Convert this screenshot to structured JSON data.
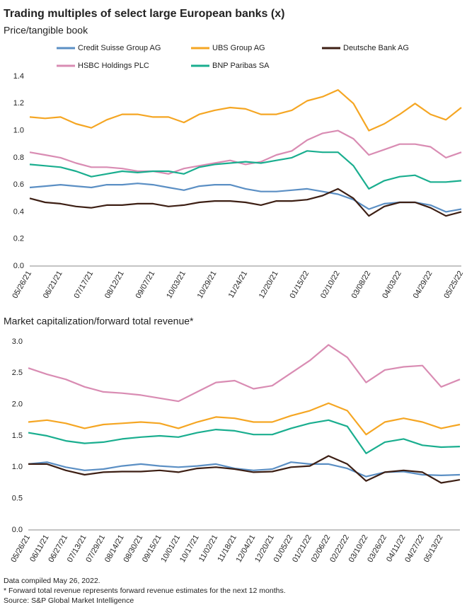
{
  "title": "Trading multiples of select large European banks (x)",
  "footnotes": [
    "Data compiled May 26, 2022.",
    "* Forward total revenue represents forward revenue estimates for the next 12 months.",
    "Source: S&P Global Market Intelligence"
  ],
  "chart_data": [
    {
      "type": "line",
      "title": "Price/tangible book",
      "categories": [
        "05/26/21",
        null,
        "06/21/21",
        null,
        "07/17/21",
        null,
        "08/12/21",
        null,
        "09/07/21",
        null,
        "10/03/21",
        null,
        "10/29/21",
        null,
        "11/24/21",
        null,
        "12/20/21",
        null,
        "01/15/22",
        null,
        "02/10/22",
        null,
        "03/08/22",
        null,
        "04/03/22",
        null,
        "04/29/22",
        null,
        "05/25/22"
      ],
      "ylim": [
        0,
        1.4
      ],
      "yticks": [
        {
          "value": 0,
          "label": "0.0"
        },
        0.2,
        0.4,
        0.6,
        0.8,
        {
          "value": 1,
          "label": "1.0"
        },
        1.2,
        1.4
      ],
      "series": [
        {
          "name": "Credit Suisse Group AG",
          "color": "#5b8fc4",
          "values": [
            0.58,
            0.59,
            0.6,
            0.59,
            0.58,
            0.6,
            0.6,
            0.61,
            0.6,
            0.58,
            0.56,
            0.59,
            0.6,
            0.6,
            0.57,
            0.55,
            0.55,
            0.56,
            0.57,
            0.55,
            0.53,
            0.49,
            0.42,
            0.46,
            0.47,
            0.47,
            0.45,
            0.4,
            0.42
          ]
        },
        {
          "name": "UBS Group AG",
          "color": "#f5a623",
          "values": [
            1.1,
            1.09,
            1.1,
            1.05,
            1.02,
            1.08,
            1.12,
            1.12,
            1.1,
            1.1,
            1.06,
            1.12,
            1.15,
            1.17,
            1.16,
            1.12,
            1.12,
            1.15,
            1.22,
            1.25,
            1.3,
            1.2,
            1.0,
            1.05,
            1.12,
            1.2,
            1.12,
            1.08,
            1.17
          ]
        },
        {
          "name": "Deutsche Bank AG",
          "color": "#3d1f14",
          "values": [
            0.5,
            0.47,
            0.46,
            0.44,
            0.43,
            0.45,
            0.45,
            0.46,
            0.46,
            0.44,
            0.45,
            0.47,
            0.48,
            0.48,
            0.47,
            0.45,
            0.48,
            0.48,
            0.49,
            0.52,
            0.57,
            0.5,
            0.37,
            0.44,
            0.47,
            0.47,
            0.43,
            0.37,
            0.4
          ]
        },
        {
          "name": "HSBC Holdings PLC",
          "color": "#d98cb3",
          "values": [
            0.84,
            0.82,
            0.8,
            0.76,
            0.73,
            0.73,
            0.72,
            0.7,
            0.7,
            0.68,
            0.72,
            0.74,
            0.76,
            0.78,
            0.75,
            0.77,
            0.82,
            0.85,
            0.93,
            0.98,
            1.0,
            0.94,
            0.82,
            0.86,
            0.9,
            0.9,
            0.88,
            0.8,
            0.84
          ]
        },
        {
          "name": "BNP Paribas SA",
          "color": "#1aae8f",
          "values": [
            0.75,
            0.74,
            0.73,
            0.7,
            0.66,
            0.68,
            0.7,
            0.69,
            0.7,
            0.7,
            0.68,
            0.73,
            0.75,
            0.76,
            0.77,
            0.76,
            0.78,
            0.8,
            0.85,
            0.84,
            0.84,
            0.74,
            0.57,
            0.63,
            0.66,
            0.67,
            0.62,
            0.62,
            0.63
          ]
        }
      ]
    },
    {
      "type": "line",
      "title": "Market capitalization/forward total revenue*",
      "categories": [
        "05/26/21",
        "06/11/21",
        "06/27/21",
        "07/13/21",
        "07/29/21",
        "08/14/21",
        "08/30/21",
        "09/15/21",
        "10/01/21",
        "10/17/21",
        "11/02/21",
        "11/18/21",
        "12/04/21",
        "12/20/21",
        "01/05/22",
        "01/21/22",
        "02/06/22",
        "02/22/22",
        "03/10/22",
        "03/26/22",
        "04/11/22",
        "04/27/22",
        "05/13/22",
        null
      ],
      "ylim": [
        0,
        3
      ],
      "yticks": [
        {
          "value": 0,
          "label": "0.0"
        },
        0.5,
        {
          "value": 1,
          "label": "1.0"
        },
        1.5,
        {
          "value": 2,
          "label": "2.0"
        },
        2.5,
        {
          "value": 3,
          "label": "3.0"
        }
      ],
      "series": [
        {
          "color": "#5b8fc4",
          "values": [
            1.05,
            1.08,
            1.0,
            0.95,
            0.97,
            1.02,
            1.05,
            1.02,
            1.0,
            1.02,
            1.05,
            0.98,
            0.95,
            0.97,
            1.08,
            1.05,
            1.05,
            0.98,
            0.85,
            0.92,
            0.93,
            0.88,
            0.87,
            0.88
          ]
        },
        {
          "color": "#f5a623",
          "values": [
            1.72,
            1.75,
            1.7,
            1.62,
            1.68,
            1.7,
            1.72,
            1.7,
            1.62,
            1.72,
            1.8,
            1.78,
            1.72,
            1.72,
            1.82,
            1.9,
            2.02,
            1.9,
            1.52,
            1.72,
            1.78,
            1.72,
            1.62,
            1.68
          ]
        },
        {
          "color": "#3d1f14",
          "values": [
            1.05,
            1.05,
            0.95,
            0.88,
            0.92,
            0.93,
            0.93,
            0.95,
            0.92,
            0.98,
            1.0,
            0.97,
            0.92,
            0.93,
            1.0,
            1.02,
            1.18,
            1.05,
            0.78,
            0.92,
            0.95,
            0.92,
            0.75,
            0.8
          ]
        },
        {
          "color": "#d98cb3",
          "values": [
            2.58,
            2.48,
            2.4,
            2.28,
            2.2,
            2.18,
            2.15,
            2.1,
            2.05,
            2.2,
            2.35,
            2.38,
            2.25,
            2.3,
            2.5,
            2.7,
            2.95,
            2.75,
            2.35,
            2.55,
            2.6,
            2.62,
            2.28,
            2.4
          ]
        },
        {
          "color": "#1aae8f",
          "values": [
            1.55,
            1.5,
            1.42,
            1.38,
            1.4,
            1.45,
            1.48,
            1.5,
            1.48,
            1.55,
            1.6,
            1.58,
            1.52,
            1.52,
            1.62,
            1.7,
            1.75,
            1.65,
            1.22,
            1.4,
            1.45,
            1.35,
            1.32,
            1.33
          ]
        }
      ]
    }
  ]
}
